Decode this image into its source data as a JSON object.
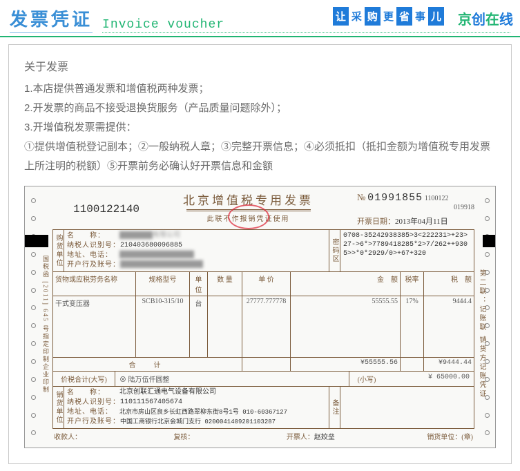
{
  "header": {
    "title_cn": "发票凭证",
    "title_en": "Invoice voucher",
    "slogan_chars": [
      "让",
      "采",
      "购",
      "更",
      "省",
      "事",
      "儿"
    ],
    "slogan_box_flags": [
      true,
      false,
      true,
      false,
      true,
      false,
      true
    ],
    "brand": "京创在线"
  },
  "about": {
    "title": "关于发票",
    "lines": [
      "1.本店提供普通发票和增值税两种发票；",
      "2.开发票的商品不接受退换货服务（产品质量问题除外）；",
      "3.开增值税发票需提供：",
      "①提供增值税登记副本；②一般纳税人章；③完整开票信息；④必须抵扣（抵扣金额为增值税专用发票上所注明的税额）⑤开票前务必确认好开票信息和金额"
    ]
  },
  "invoice": {
    "code_left": "1100122140",
    "title": "北京增值税专用发票",
    "subtitle": "此联不作报销凭证使用",
    "code_tiny1": "1100122",
    "code_tiny2": "019918",
    "number_label": "№",
    "number": "01991855",
    "date_label": "开票日期：",
    "date": "2013年04月11日",
    "buyer": {
      "vlabel": "购货单位",
      "name_k": "名　　称：",
      "tax_k": "纳税人识别号：",
      "tax_v": "210403680096885",
      "addr_k": "地址、电话：",
      "bank_k": "开户行及账号："
    },
    "password": {
      "vlabel": "密码区",
      "lines": [
        "0708-35242938385>3<222231>+23>27->6*>7789418285*2>7/262++9305>>*0*2929/0>+67+320"
      ]
    },
    "cols": {
      "name": "货物或应税劳务名称",
      "spec": "规格型号",
      "unit": "单位",
      "qty": "数 量",
      "price": "单 价",
      "amt": "金　额",
      "rate": "税率",
      "tax": "税　额"
    },
    "item": {
      "name": "干式变压器",
      "spec": "SCB10-315/10",
      "unit": "台",
      "qty": "",
      "price": "27777.777778",
      "amt": "55555.55",
      "rate": "17%",
      "tax": "9444.4"
    },
    "subtotal": {
      "label": "合　计",
      "amt": "¥55555.56",
      "tax": "¥9444.44"
    },
    "total": {
      "cn_label": "价税合计(大写)",
      "cn_value": "⊗ 陆万伍仟圆整",
      "num_label": "(小写)",
      "num_value": "¥ 65000.00"
    },
    "seller": {
      "vlabel": "销货单位",
      "name_k": "名　　称：",
      "name_v": "北京创联汇通电气设备有限公司",
      "tax_k": "纳税人识别号：",
      "tax_v": "110111567405674",
      "addr_k": "地址、电话：",
      "addr_v": "北京市房山区良乡长虹西路翠柳东街8号1号 010-60367127",
      "bank_k": "开户行及账号：",
      "bank_v": "中国工商银行北京会城门支行 0200041409201103287"
    },
    "remark_vlabel": "备注",
    "footer": {
      "payee_k": "收款人：",
      "check_k": "复核：",
      "drawer_k": "开票人：",
      "drawer_v": "赵姣垒",
      "seller_seal_k": "销货单位：(章)"
    },
    "side_left": "国税函 [2011] 645 号指定印制企业印制",
    "side_right": "第二联：记账联 销货方记账凭证"
  }
}
